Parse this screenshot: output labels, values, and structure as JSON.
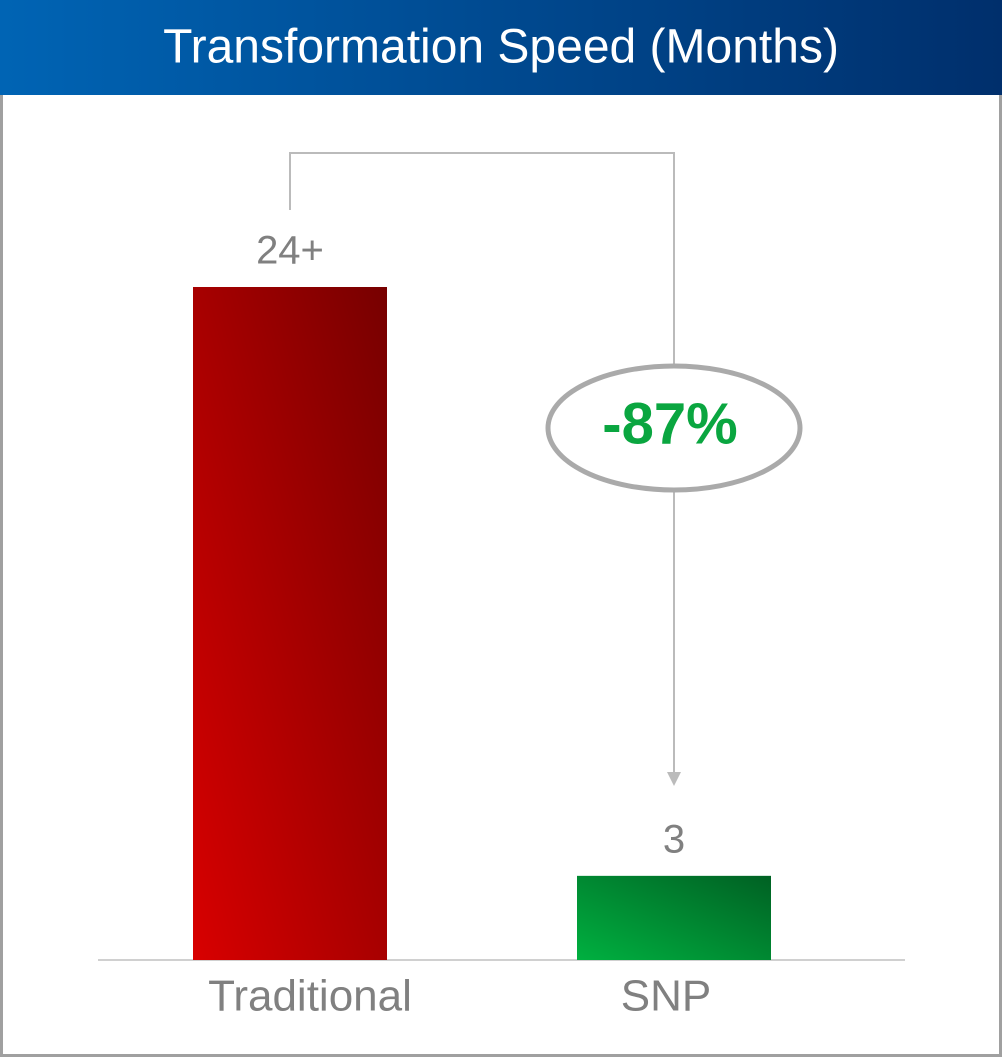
{
  "chart_data": {
    "type": "bar",
    "title": "Transformation Speed (Months)",
    "categories": [
      "Traditional",
      "SNP"
    ],
    "values": [
      24,
      3
    ],
    "value_labels": [
      "24+",
      "3"
    ],
    "colors": [
      "#d80000",
      "#00b040"
    ],
    "annotation": "-87%"
  }
}
